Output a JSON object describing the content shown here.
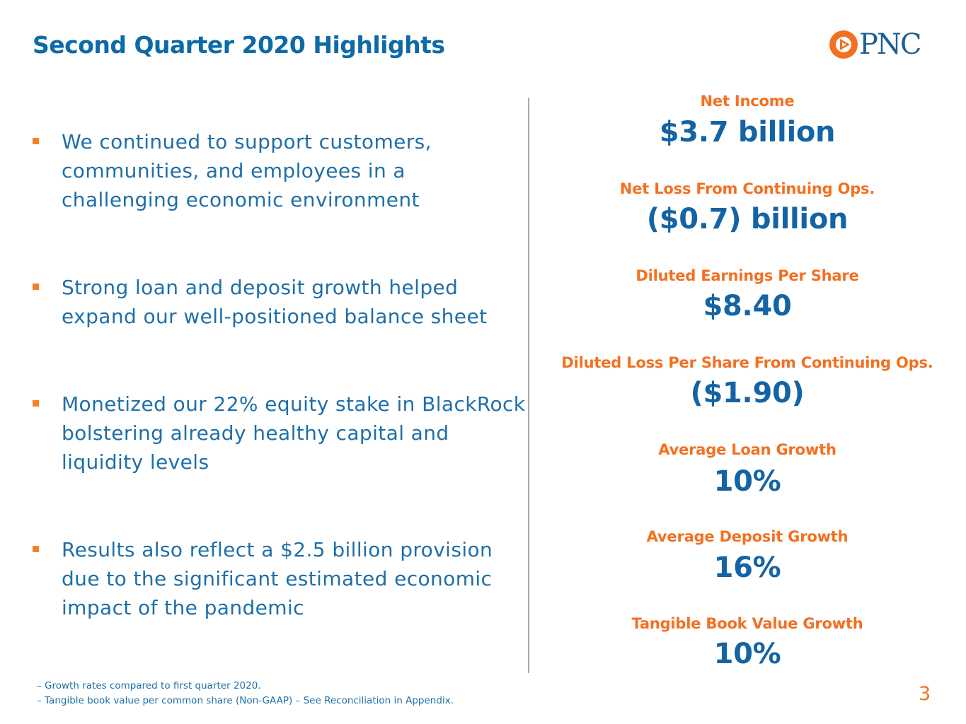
{
  "header": {
    "title": "Second Quarter 2020 Highlights",
    "logo_text": "PNC",
    "logo_icon": "pnc-triangle-logo-icon",
    "colors": {
      "title": "#0d6aa8",
      "accent_orange": "#f37021",
      "value_blue": "#1464a5",
      "logo_blue": "#1e5f91"
    }
  },
  "bullets": [
    {
      "text": "We continued to support customers, communities, and employees in a challenging economic environment"
    },
    {
      "text": "Strong loan and deposit growth helped expand our well-positioned balance sheet"
    },
    {
      "text": "Monetized our 22% equity stake in BlackRock bolstering already healthy capital and liquidity levels"
    },
    {
      "text": "Results also reflect a $2.5 billion provision due to the significant estimated economic impact of the pandemic"
    }
  ],
  "stats": [
    {
      "label": "Net Income",
      "value": "$3.7 billion"
    },
    {
      "label": "Net Loss From Continuing Ops.",
      "value": "($0.7) billion"
    },
    {
      "label": "Diluted Earnings Per Share",
      "value": "$8.40"
    },
    {
      "label": "Diluted Loss Per Share From Continuing Ops.",
      "value": "($1.90)"
    },
    {
      "label": "Average Loan Growth",
      "value": "10%"
    },
    {
      "label": "Average Deposit Growth",
      "value": "16%"
    },
    {
      "label": "Tangible Book Value Growth",
      "value": "10%"
    }
  ],
  "footnotes": [
    "– Growth rates compared to first quarter 2020.",
    "– Tangible book value per common share (Non-GAAP) – See Reconciliation in Appendix."
  ],
  "page_number": "3"
}
